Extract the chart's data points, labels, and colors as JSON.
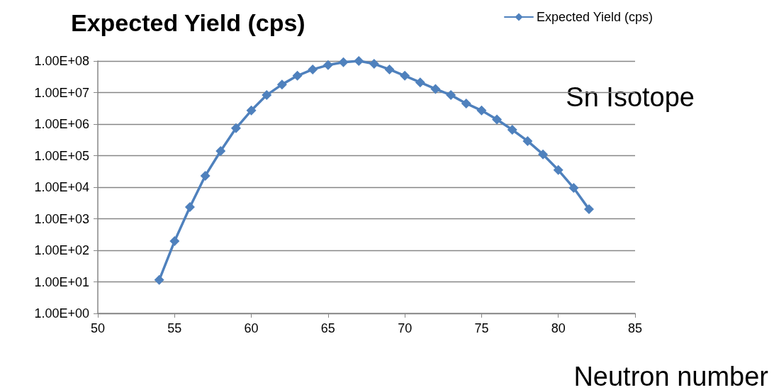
{
  "chart_data": {
    "type": "line",
    "title": "Expected Yield (cps)",
    "xlabel": "Neutron number",
    "annotations": [
      "Sn Isotope"
    ],
    "x": [
      54,
      55,
      56,
      57,
      58,
      59,
      60,
      61,
      62,
      63,
      64,
      65,
      66,
      67,
      68,
      69,
      70,
      71,
      72,
      73,
      74,
      75,
      76,
      77,
      78,
      79,
      80,
      81,
      82
    ],
    "series": [
      {
        "name": "Expected Yield (cps)",
        "color": "#4f81bd",
        "values": [
          11.5,
          195,
          2350,
          23000,
          140000,
          740000,
          2700000,
          8300000,
          18000000,
          34000000,
          54000000,
          74000000,
          91000000,
          100000000,
          81000000,
          54000000,
          34000000,
          21000000,
          13000000,
          8300000,
          4500000,
          2700000,
          1400000,
          660000,
          290000,
          110000,
          35000,
          9500,
          2000
        ]
      }
    ],
    "log": "y",
    "ylim": [
      1,
      100000000
    ],
    "yticks": [
      {
        "value": 1,
        "label": "1.00E+00"
      },
      {
        "value": 10,
        "label": "1.00E+01"
      },
      {
        "value": 100,
        "label": "1.00E+02"
      },
      {
        "value": 1000,
        "label": "1.00E+03"
      },
      {
        "value": 10000,
        "label": "1.00E+04"
      },
      {
        "value": 100000,
        "label": "1.00E+05"
      },
      {
        "value": 1000000,
        "label": "1.00E+06"
      },
      {
        "value": 10000000,
        "label": "1.00E+07"
      },
      {
        "value": 100000000,
        "label": "1.00E+08"
      }
    ],
    "xlim": [
      50,
      85
    ],
    "xticks": [
      50,
      55,
      60,
      65,
      70,
      75,
      80,
      85
    ],
    "grid": "y",
    "legend": "top right",
    "marker": "diamond",
    "line_style": "solid"
  }
}
